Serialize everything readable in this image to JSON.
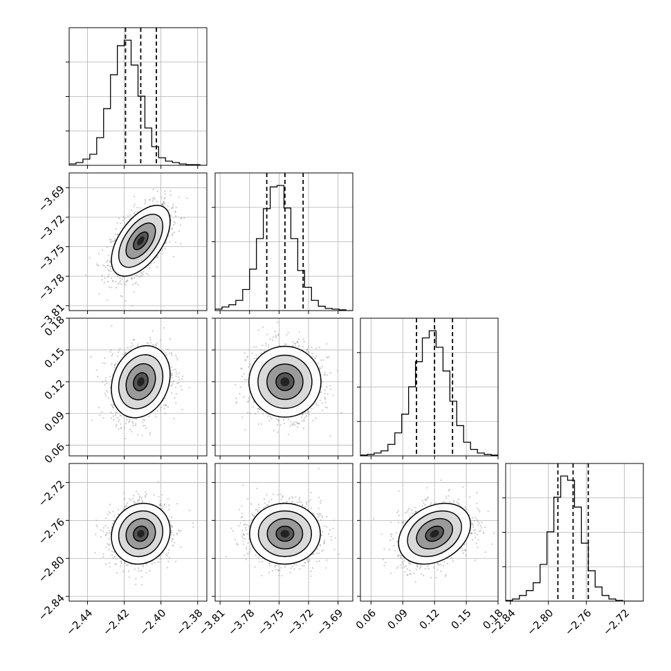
{
  "chart_data": {
    "type": "corner",
    "parameters": [
      {
        "index": 0,
        "range": [
          -2.45,
          -2.375
        ],
        "ticks": [
          -2.44,
          -2.42,
          -2.4,
          -2.38
        ],
        "tick_labels": [
          "−2.44",
          "−2.42",
          "−2.40",
          "−2.38"
        ],
        "mean": -2.411,
        "sd": 0.008,
        "quantiles": [
          -2.4193,
          -2.411,
          -2.4025
        ],
        "hist_counts": [
          2,
          4,
          9,
          16,
          40,
          82,
          131,
          173,
          181,
          145,
          100,
          54,
          27,
          11,
          6,
          4,
          2,
          1,
          1,
          0
        ]
      },
      {
        "index": 1,
        "range": [
          -3.815,
          -3.675
        ],
        "ticks": [
          -3.81,
          -3.78,
          -3.75,
          -3.72,
          -3.69
        ],
        "tick_labels": [
          "−3.81",
          "−3.78",
          "−3.75",
          "−3.72",
          "−3.69"
        ],
        "mean": -3.744,
        "sd": 0.018,
        "quantiles": [
          -3.7625,
          -3.744,
          -3.7255
        ],
        "hist_counts": [
          2,
          5,
          8,
          14,
          29,
          57,
          99,
          140,
          170,
          172,
          141,
          99,
          55,
          32,
          14,
          6,
          3,
          2,
          1,
          0
        ]
      },
      {
        "index": 2,
        "range": [
          0.05,
          0.18
        ],
        "ticks": [
          0.06,
          0.09,
          0.12,
          0.15,
          0.18
        ],
        "tick_labels": [
          "0.06",
          "0.09",
          "0.12",
          "0.15",
          "0.18"
        ],
        "mean": 0.12,
        "sd": 0.017,
        "quantiles": [
          0.103,
          0.12,
          0.137
        ],
        "hist_counts": [
          1,
          2,
          4,
          7,
          16,
          32,
          58,
          96,
          131,
          164,
          174,
          151,
          118,
          76,
          42,
          19,
          9,
          4,
          2,
          1
        ]
      },
      {
        "index": 3,
        "range": [
          -2.845,
          -2.7
        ],
        "ticks": [
          -2.84,
          -2.8,
          -2.76,
          -2.72
        ],
        "tick_labels": [
          "−2.84",
          "−2.80",
          "−2.76",
          "−2.72"
        ],
        "mean": -2.774,
        "sd": 0.016,
        "quantiles": [
          -2.79,
          -2.774,
          -2.758
        ],
        "hist_counts": [
          1,
          3,
          8,
          15,
          26,
          52,
          98,
          147,
          177,
          171,
          133,
          82,
          43,
          20,
          8,
          3,
          1,
          0,
          0,
          0
        ]
      }
    ],
    "correlations": [
      {
        "pair": [
          1,
          0
        ],
        "rho": 0.55
      },
      {
        "pair": [
          2,
          0
        ],
        "rho": 0.2
      },
      {
        "pair": [
          2,
          1
        ],
        "rho": 0.0
      },
      {
        "pair": [
          3,
          0
        ],
        "rho": 0.1
      },
      {
        "pair": [
          3,
          1
        ],
        "rho": 0.0
      },
      {
        "pair": [
          3,
          2
        ],
        "rho": 0.3
      }
    ],
    "contour_levels_sigma": [
      0.5,
      1.0,
      1.5,
      2.0
    ],
    "scatter_points_per_panel": 1400,
    "colors": {
      "histogram": "#000000",
      "contour": "#000000",
      "scatter": "#9a9a9a",
      "density_dark": "#222222",
      "density_light": "#e6e6e6",
      "grid": "#b0b0b0"
    },
    "grid": true
  }
}
